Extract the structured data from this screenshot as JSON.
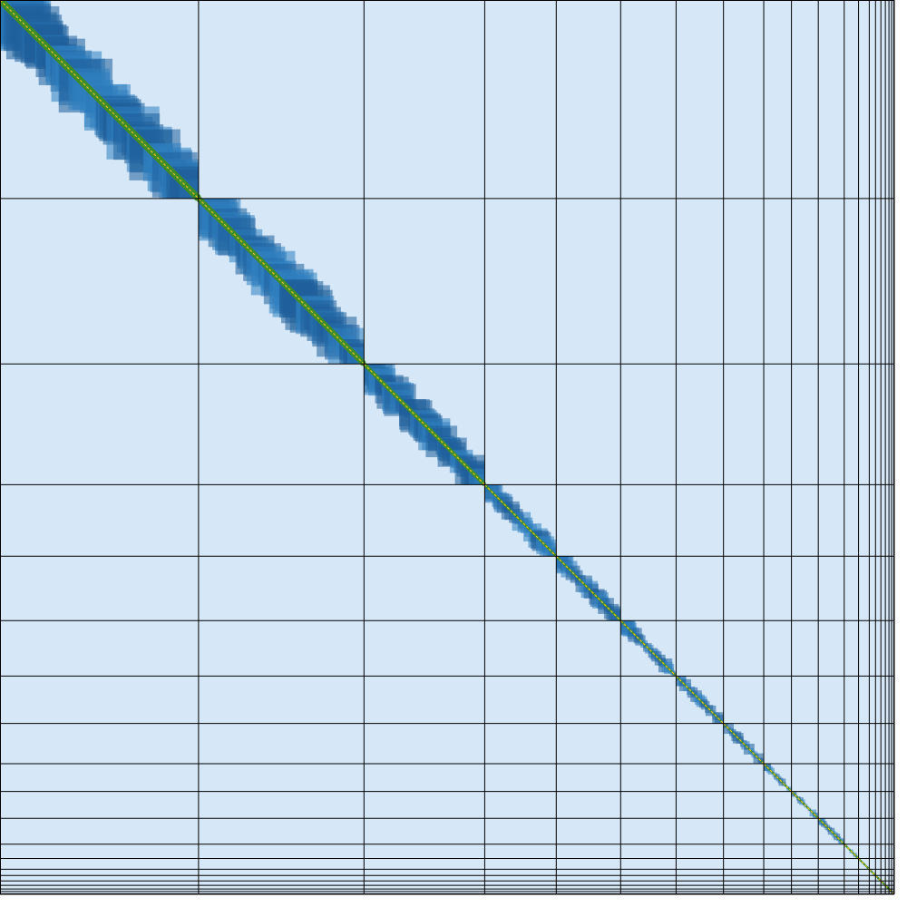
{
  "chart_data": {
    "type": "heatmap",
    "title": "",
    "xlabel": "",
    "ylabel": "",
    "grid": true,
    "legend": "none",
    "chromosome_bins": [
      222,
      185,
      135,
      80,
      72,
      62,
      53,
      45,
      31,
      30,
      29,
      16,
      12,
      7,
      6,
      5,
      4,
      3,
      3
    ],
    "contact_scale": [
      0,
      1
    ],
    "colors": {
      "empty": "#d6e8f8",
      "grid": "#000000",
      "ramp": [
        "#2f80c0",
        "#1f5f9a",
        "#1a6a5a",
        "#3d8c2c",
        "#a3b52a",
        "#e6c21c",
        "#e8541e"
      ]
    }
  }
}
